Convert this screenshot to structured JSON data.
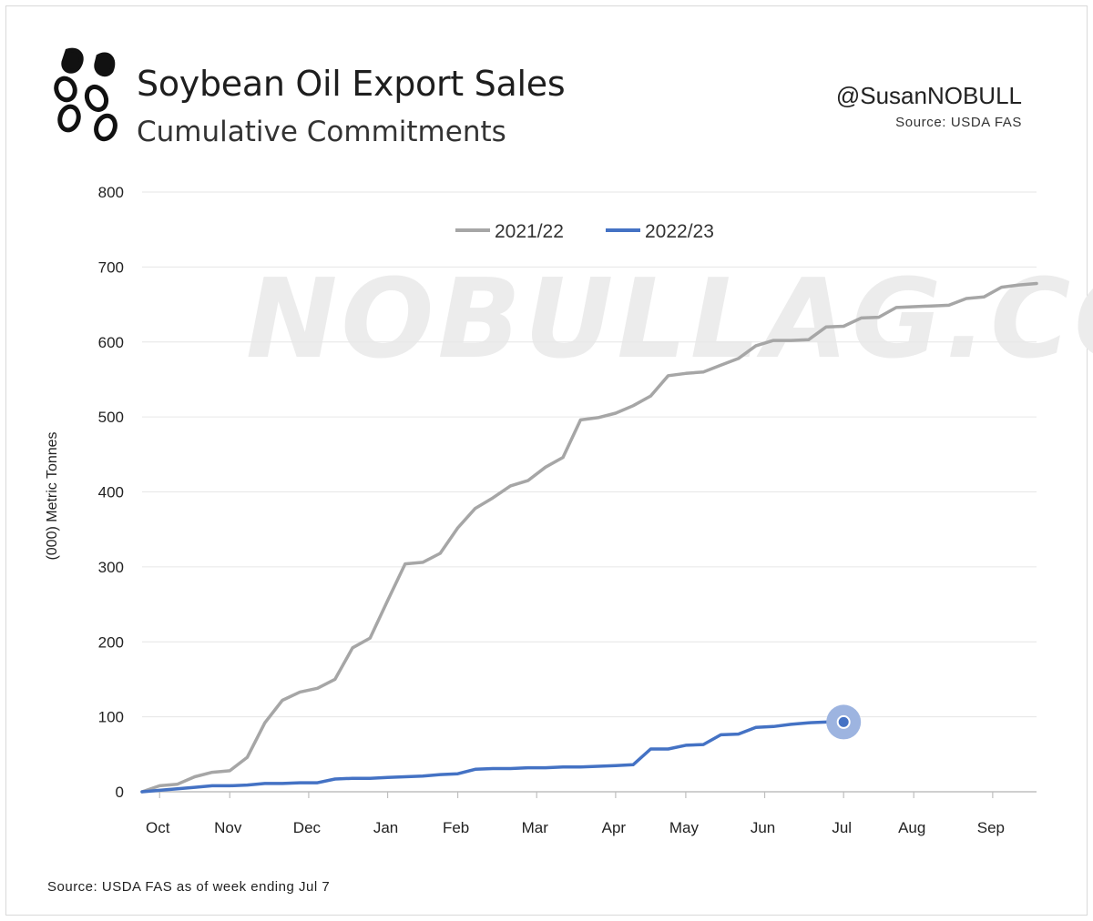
{
  "header": {
    "title": "Soybean Oil Export Sales",
    "subtitle": "Cumulative Commitments",
    "handle": "@SusanNOBULL",
    "source": "Source: USDA FAS"
  },
  "footer": {
    "note": "Source: USDA FAS as of week ending Jul 7"
  },
  "watermark": "NOBULLAG.COM",
  "chart_data": {
    "type": "line",
    "ylabel": "(000) Metric Tonnes",
    "xlabel": "",
    "ylim": [
      0,
      800
    ],
    "yticks": [
      0,
      100,
      200,
      300,
      400,
      500,
      600,
      700,
      800
    ],
    "x_unit": "weeks since start of marketing year",
    "xlim": [
      0,
      51
    ],
    "month_ticks": [
      {
        "label": "Oct",
        "week": 1
      },
      {
        "label": "Nov",
        "week": 5
      },
      {
        "label": "Dec",
        "week": 9.5
      },
      {
        "label": "Jan",
        "week": 14
      },
      {
        "label": "Feb",
        "week": 18
      },
      {
        "label": "Mar",
        "week": 22.5
      },
      {
        "label": "Apr",
        "week": 27
      },
      {
        "label": "May",
        "week": 31
      },
      {
        "label": "Jun",
        "week": 35.5
      },
      {
        "label": "Jul",
        "week": 40
      },
      {
        "label": "Aug",
        "week": 44
      },
      {
        "label": "Sep",
        "week": 48.5
      }
    ],
    "legend": [
      "2021/22",
      "2022/23"
    ],
    "series": [
      {
        "name": "2021/22",
        "color": "#a6a6a6",
        "x": [
          0,
          1,
          2,
          3,
          4,
          5,
          6,
          7,
          8,
          9,
          10,
          11,
          12,
          13,
          14,
          15,
          16,
          17,
          18,
          19,
          20,
          21,
          22,
          23,
          24,
          25,
          26,
          27,
          28,
          29,
          30,
          31,
          32,
          33,
          34,
          35,
          36,
          37,
          38,
          39,
          40,
          41,
          42,
          43,
          44,
          45,
          46,
          47,
          48,
          49,
          50,
          51
        ],
        "values": [
          0,
          8,
          10,
          20,
          26,
          28,
          46,
          92,
          122,
          133,
          138,
          150,
          192,
          205,
          255,
          304,
          306,
          318,
          352,
          378,
          392,
          408,
          415,
          433,
          446,
          496,
          499,
          505,
          515,
          528,
          555,
          558,
          560,
          569,
          578,
          595,
          602,
          602,
          603,
          620,
          621,
          632,
          633,
          646,
          647,
          648,
          649,
          658,
          660,
          673,
          676,
          678
        ]
      },
      {
        "name": "2022/23",
        "color": "#4472c4",
        "x": [
          0,
          1,
          2,
          3,
          4,
          5,
          6,
          7,
          8,
          9,
          10,
          11,
          12,
          13,
          14,
          15,
          16,
          17,
          18,
          19,
          20,
          21,
          22,
          23,
          24,
          25,
          26,
          27,
          28,
          29,
          30,
          31,
          32,
          33,
          34,
          35,
          36,
          37,
          38,
          39,
          40
        ],
        "values": [
          0,
          2,
          4,
          6,
          8,
          8,
          9,
          11,
          11,
          12,
          12,
          17,
          18,
          18,
          19,
          20,
          21,
          23,
          24,
          30,
          31,
          31,
          32,
          32,
          33,
          33,
          34,
          35,
          36,
          57,
          57,
          62,
          63,
          76,
          77,
          86,
          87,
          90,
          92,
          93,
          93
        ]
      }
    ]
  },
  "colors": {
    "grid": "#e6e6e6",
    "axis": "#bfbfbf",
    "series_2021": "#a6a6a6",
    "series_2022": "#4472c4",
    "end_marker_halo": "#9db4e0"
  }
}
